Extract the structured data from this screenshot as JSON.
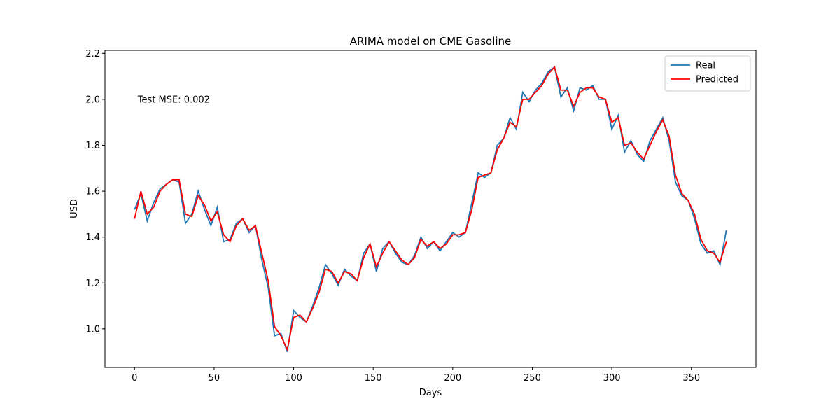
{
  "chart_data": {
    "type": "line",
    "title": "ARIMA model on CME Gasoline",
    "xlabel": "Days",
    "ylabel": "USD",
    "annotation": {
      "text": "Test MSE: 0.002",
      "x": 2,
      "y": 2.0
    },
    "legend": "upper right",
    "x": [
      0,
      4,
      8,
      12,
      16,
      20,
      24,
      28,
      32,
      36,
      40,
      44,
      48,
      52,
      56,
      60,
      64,
      68,
      72,
      76,
      80,
      84,
      88,
      92,
      96,
      100,
      104,
      108,
      112,
      116,
      120,
      124,
      128,
      132,
      136,
      140,
      144,
      148,
      152,
      156,
      160,
      164,
      168,
      172,
      176,
      180,
      184,
      188,
      192,
      196,
      200,
      204,
      208,
      212,
      216,
      220,
      224,
      228,
      232,
      236,
      240,
      244,
      248,
      252,
      256,
      260,
      264,
      268,
      272,
      276,
      280,
      284,
      288,
      292,
      296,
      300,
      304,
      308,
      312,
      316,
      320,
      324,
      328,
      332,
      336,
      340,
      344,
      348,
      352,
      356,
      360,
      364,
      368,
      372
    ],
    "series": [
      {
        "name": "Real",
        "color": "#1f77b4",
        "values": [
          1.52,
          1.59,
          1.47,
          1.55,
          1.61,
          1.63,
          1.65,
          1.64,
          1.46,
          1.5,
          1.6,
          1.52,
          1.45,
          1.53,
          1.38,
          1.39,
          1.46,
          1.48,
          1.42,
          1.45,
          1.3,
          1.18,
          0.97,
          0.98,
          0.9,
          1.08,
          1.05,
          1.03,
          1.1,
          1.18,
          1.28,
          1.24,
          1.19,
          1.26,
          1.23,
          1.21,
          1.33,
          1.37,
          1.25,
          1.35,
          1.38,
          1.33,
          1.29,
          1.28,
          1.32,
          1.4,
          1.35,
          1.38,
          1.34,
          1.38,
          1.42,
          1.4,
          1.42,
          1.55,
          1.68,
          1.66,
          1.68,
          1.8,
          1.83,
          1.92,
          1.87,
          2.03,
          1.99,
          2.04,
          2.07,
          2.12,
          2.14,
          2.01,
          2.05,
          1.95,
          2.05,
          2.04,
          2.06,
          2.0,
          2.0,
          1.87,
          1.93,
          1.77,
          1.82,
          1.76,
          1.73,
          1.82,
          1.87,
          1.92,
          1.82,
          1.64,
          1.58,
          1.56,
          1.48,
          1.37,
          1.33,
          1.34,
          1.28,
          1.43
        ]
      },
      {
        "name": "Predicted",
        "color": "#ff0000",
        "values": [
          1.48,
          1.6,
          1.5,
          1.53,
          1.6,
          1.63,
          1.65,
          1.65,
          1.5,
          1.49,
          1.58,
          1.54,
          1.47,
          1.51,
          1.41,
          1.38,
          1.45,
          1.48,
          1.43,
          1.45,
          1.33,
          1.21,
          1.01,
          0.97,
          0.91,
          1.05,
          1.06,
          1.03,
          1.09,
          1.16,
          1.26,
          1.25,
          1.2,
          1.25,
          1.24,
          1.21,
          1.31,
          1.37,
          1.27,
          1.33,
          1.38,
          1.34,
          1.3,
          1.28,
          1.31,
          1.39,
          1.36,
          1.38,
          1.35,
          1.37,
          1.41,
          1.41,
          1.42,
          1.52,
          1.66,
          1.67,
          1.68,
          1.78,
          1.83,
          1.9,
          1.88,
          2.0,
          2.0,
          2.03,
          2.06,
          2.11,
          2.14,
          2.04,
          2.04,
          1.97,
          2.03,
          2.05,
          2.05,
          2.01,
          2.0,
          1.9,
          1.92,
          1.8,
          1.81,
          1.77,
          1.74,
          1.8,
          1.86,
          1.91,
          1.84,
          1.67,
          1.59,
          1.56,
          1.5,
          1.39,
          1.34,
          1.33,
          1.29,
          1.38
        ]
      }
    ],
    "xlim": [
      -18.6,
      390.6
    ],
    "ylim": [
      0.832,
      2.213
    ],
    "xticks": [
      0,
      50,
      100,
      150,
      200,
      250,
      300,
      350
    ],
    "yticks": [
      {
        "value": 1.0,
        "label": "1.0"
      },
      1.2,
      1.4,
      1.6,
      1.8,
      {
        "value": 2.0,
        "label": "2.0"
      },
      2.2
    ]
  }
}
